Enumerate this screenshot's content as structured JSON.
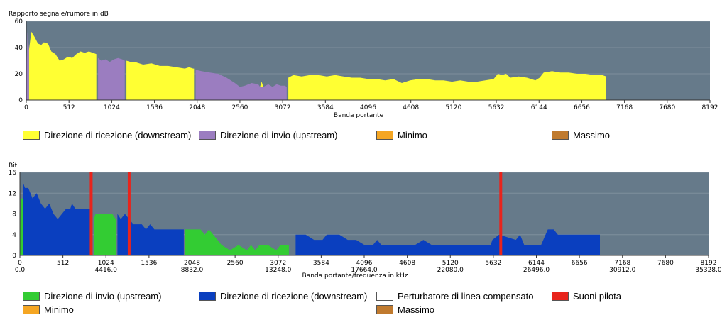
{
  "chart_data": [
    {
      "type": "area",
      "title": "",
      "ylabel": "Rapporto segnale/rumore in dB",
      "xlabel": "Banda portante",
      "xlim": [
        0,
        8192
      ],
      "ylim": [
        0,
        60
      ],
      "yticks": [
        "0",
        "20",
        "40",
        "60"
      ],
      "xticks": [
        "0",
        "512",
        "1024",
        "1536",
        "2048",
        "2560",
        "3072",
        "3584",
        "4096",
        "4608",
        "5120",
        "5632",
        "6144",
        "6656",
        "7168",
        "7680",
        "8192"
      ],
      "legend": [
        {
          "label": "Direzione di ricezione (downstream)",
          "color": "#ffff33"
        },
        {
          "label": "Direzione di invio  (upstream)",
          "color": "#9b7dc0"
        },
        {
          "label": "Minimo",
          "color": "#f5a623"
        },
        {
          "label": "Massimo",
          "color": "#c07a2e"
        }
      ],
      "series": [
        {
          "name": "Direzione di ricezione (downstream)",
          "color": "#ffff33",
          "segments": [
            [
              [
                32,
                38
              ],
              [
                60,
                52
              ],
              [
                100,
                48
              ],
              [
                140,
                43
              ],
              [
                180,
                42
              ],
              [
                210,
                44
              ],
              [
                260,
                43
              ],
              [
                300,
                37
              ],
              [
                350,
                35
              ],
              [
                400,
                30
              ],
              [
                450,
                31
              ],
              [
                500,
                33
              ],
              [
                550,
                32
              ],
              [
                600,
                35
              ],
              [
                650,
                37
              ],
              [
                700,
                36
              ],
              [
                750,
                37
              ],
              [
                800,
                36
              ],
              [
                840,
                35
              ]
            ],
            [
              [
                1200,
                30
              ],
              [
                1250,
                29
              ],
              [
                1300,
                29
              ],
              [
                1400,
                27
              ],
              [
                1500,
                28
              ],
              [
                1600,
                26
              ],
              [
                1700,
                26
              ],
              [
                1800,
                25
              ],
              [
                1900,
                24
              ],
              [
                1950,
                25
              ],
              [
                2000,
                24
              ],
              [
                2010,
                24
              ]
            ],
            [
              [
                2800,
                10
              ],
              [
                2820,
                14
              ],
              [
                2840,
                10
              ]
            ],
            [
              [
                3140,
                17
              ],
              [
                3200,
                19
              ],
              [
                3300,
                18
              ],
              [
                3400,
                19
              ],
              [
                3500,
                19
              ],
              [
                3600,
                18
              ],
              [
                3700,
                19
              ],
              [
                3800,
                18
              ],
              [
                3900,
                17
              ],
              [
                4000,
                17
              ],
              [
                4100,
                16
              ],
              [
                4200,
                16
              ],
              [
                4300,
                15
              ],
              [
                4400,
                16
              ],
              [
                4500,
                13
              ],
              [
                4600,
                15
              ],
              [
                4700,
                16
              ],
              [
                4800,
                16
              ],
              [
                4900,
                15
              ],
              [
                5000,
                15
              ],
              [
                5100,
                14
              ],
              [
                5200,
                15
              ],
              [
                5300,
                14
              ],
              [
                5400,
                14
              ],
              [
                5500,
                15
              ],
              [
                5600,
                16
              ],
              [
                5650,
                20
              ],
              [
                5700,
                19
              ],
              [
                5750,
                20
              ],
              [
                5800,
                17
              ],
              [
                5900,
                18
              ],
              [
                6000,
                17
              ],
              [
                6100,
                15
              ],
              [
                6150,
                17
              ],
              [
                6200,
                21
              ],
              [
                6300,
                22
              ],
              [
                6400,
                21
              ],
              [
                6500,
                21
              ],
              [
                6600,
                20
              ],
              [
                6700,
                20
              ],
              [
                6800,
                19
              ],
              [
                6900,
                19
              ],
              [
                6950,
                18
              ]
            ]
          ]
        },
        {
          "name": "Direzione di invio  (upstream)",
          "color": "#9b7dc0",
          "segments": [
            [
              [
                0,
                20
              ],
              [
                15,
                52
              ],
              [
                32,
                38
              ]
            ],
            [
              [
                860,
                32
              ],
              [
                900,
                30
              ],
              [
                950,
                31
              ],
              [
                1000,
                29
              ],
              [
                1050,
                31
              ],
              [
                1100,
                32
              ],
              [
                1150,
                31
              ],
              [
                1180,
                30
              ]
            ],
            [
              [
                2030,
                23
              ],
              [
                2100,
                22
              ],
              [
                2200,
                21
              ],
              [
                2300,
                20
              ],
              [
                2400,
                17
              ],
              [
                2500,
                13
              ],
              [
                2560,
                10
              ],
              [
                2620,
                11
              ],
              [
                2700,
                13
              ],
              [
                2780,
                12
              ],
              [
                2800,
                10
              ],
              [
                2840,
                10
              ],
              [
                2900,
                12
              ],
              [
                2950,
                10
              ],
              [
                3000,
                12
              ],
              [
                3050,
                11
              ],
              [
                3100,
                11
              ],
              [
                3120,
                10
              ]
            ]
          ]
        }
      ]
    },
    {
      "type": "area",
      "title": "",
      "ylabel": "Bit",
      "xlabel": "Banda portante/frequenza in kHz",
      "xlim": [
        0,
        8192
      ],
      "ylim": [
        0,
        16
      ],
      "yticks": [
        "0",
        "4",
        "8",
        "12",
        "16"
      ],
      "xticks": [
        "0",
        "512",
        "1024",
        "1536",
        "2048",
        "2560",
        "3072",
        "3584",
        "4096",
        "4608",
        "5120",
        "5632",
        "6144",
        "6656",
        "7168",
        "7680",
        "8192"
      ],
      "freq_ticks": [
        {
          "x": 0,
          "label": "0.0"
        },
        {
          "x": 1024,
          "label": "4416.0"
        },
        {
          "x": 2048,
          "label": "8832.0"
        },
        {
          "x": 3072,
          "label": "13248.0"
        },
        {
          "x": 4096,
          "label": "17664.0"
        },
        {
          "x": 5120,
          "label": "22080.0"
        },
        {
          "x": 6144,
          "label": "26496.0"
        },
        {
          "x": 7168,
          "label": "30912.0"
        },
        {
          "x": 8192,
          "label": "35328.0"
        }
      ],
      "legend": [
        {
          "label": "Direzione di invio  (upstream)",
          "color": "#33cc33"
        },
        {
          "label": "Direzione di ricezione (downstream)",
          "color": "#0a3fbf"
        },
        {
          "label": "Perturbatore di linea compensato",
          "color": "#ffffff"
        },
        {
          "label": "Suoni pilota",
          "color": "#e8241c"
        },
        {
          "label": "Minimo",
          "color": "#f5a623"
        },
        {
          "label": "Massimo",
          "color": "#c07a2e"
        }
      ],
      "pilot_tones": [
        848,
        1300,
        5720
      ],
      "series": [
        {
          "name": "Direzione di invio  (upstream)",
          "color": "#33cc33",
          "segments": [
            [
              [
                0,
                0
              ],
              [
                10,
                11
              ],
              [
                40,
                11
              ]
            ],
            [
              [
                880,
                7
              ],
              [
                900,
                8
              ],
              [
                1100,
                8
              ],
              [
                1140,
                7
              ]
            ],
            [
              [
                1960,
                5
              ],
              [
                1980,
                5
              ],
              [
                2050,
                5
              ],
              [
                2150,
                5
              ],
              [
                2200,
                4
              ],
              [
                2250,
                5
              ],
              [
                2300,
                4
              ],
              [
                2350,
                3
              ],
              [
                2400,
                2
              ],
              [
                2500,
                1
              ],
              [
                2600,
                2
              ],
              [
                2700,
                1
              ],
              [
                2750,
                2
              ],
              [
                2800,
                1
              ],
              [
                2850,
                2
              ],
              [
                2950,
                2
              ],
              [
                3050,
                1
              ],
              [
                3100,
                2
              ],
              [
                3200,
                2
              ]
            ]
          ]
        },
        {
          "name": "Direzione di ricezione (downstream)",
          "color": "#0a3fbf",
          "segments": [
            [
              [
                40,
                14
              ],
              [
                60,
                13
              ],
              [
                100,
                13
              ],
              [
                150,
                11
              ],
              [
                200,
                12
              ],
              [
                250,
                10
              ],
              [
                300,
                9
              ],
              [
                350,
                10
              ],
              [
                400,
                8
              ],
              [
                450,
                7
              ],
              [
                500,
                8
              ],
              [
                550,
                9
              ],
              [
                600,
                9
              ],
              [
                620,
                10
              ],
              [
                660,
                9
              ],
              [
                840,
                9
              ]
            ],
            [
              [
                1160,
                8
              ],
              [
                1200,
                7
              ],
              [
                1250,
                8
              ],
              [
                1300,
                7
              ],
              [
                1350,
                6
              ],
              [
                1450,
                6
              ],
              [
                1500,
                5
              ],
              [
                1550,
                6
              ],
              [
                1600,
                5
              ],
              [
                1950,
                5
              ]
            ],
            [
              [
                3280,
                4
              ],
              [
                3400,
                4
              ],
              [
                3500,
                3
              ],
              [
                3600,
                3
              ],
              [
                3650,
                4
              ],
              [
                3800,
                4
              ],
              [
                3900,
                3
              ],
              [
                4000,
                3
              ],
              [
                4100,
                2
              ],
              [
                4200,
                2
              ],
              [
                4250,
                3
              ],
              [
                4300,
                2
              ],
              [
                4700,
                2
              ],
              [
                4800,
                3
              ],
              [
                4900,
                2
              ],
              [
                5600,
                2
              ],
              [
                5620,
                3
              ],
              [
                5700,
                4
              ],
              [
                5900,
                3
              ],
              [
                5950,
                4
              ],
              [
                6000,
                2
              ],
              [
                6200,
                2
              ],
              [
                6280,
                5
              ],
              [
                6350,
                5
              ],
              [
                6400,
                4
              ],
              [
                6900,
                4
              ]
            ]
          ]
        }
      ]
    }
  ]
}
